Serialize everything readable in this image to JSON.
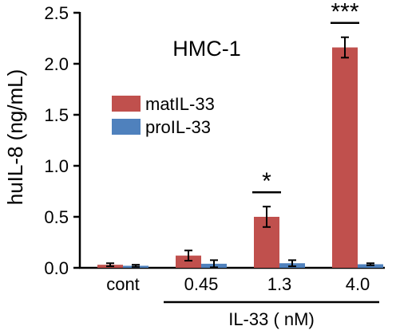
{
  "chart_data": {
    "type": "bar",
    "title": "HMC-1",
    "ylabel": "huIL-8 (ng/mL)",
    "xlabel": "IL-33 ( nM)",
    "ylim": [
      0,
      2.5
    ],
    "yticks": [
      0.0,
      0.5,
      1.0,
      1.5,
      2.0,
      2.5
    ],
    "ytick_labels": [
      "0.0",
      "0.5",
      "1.0",
      "1.5",
      "2.0",
      "2.5"
    ],
    "categories": [
      "cont",
      "0.45",
      "1.3",
      "4.0"
    ],
    "series": [
      {
        "name": "matIL-33",
        "color": "#c0504d",
        "values": [
          0.03,
          0.12,
          0.5,
          2.16
        ],
        "errors": [
          0.015,
          0.05,
          0.1,
          0.1
        ]
      },
      {
        "name": "proIL-33",
        "color": "#4f81bd",
        "values": [
          0.02,
          0.04,
          0.045,
          0.035
        ],
        "errors": [
          0.01,
          0.035,
          0.03,
          0.01
        ]
      }
    ],
    "annotations": [
      {
        "category": "1.3",
        "text": "*"
      },
      {
        "category": "4.0",
        "text": "***"
      }
    ],
    "legend_position": "middle-left",
    "grid": false
  }
}
